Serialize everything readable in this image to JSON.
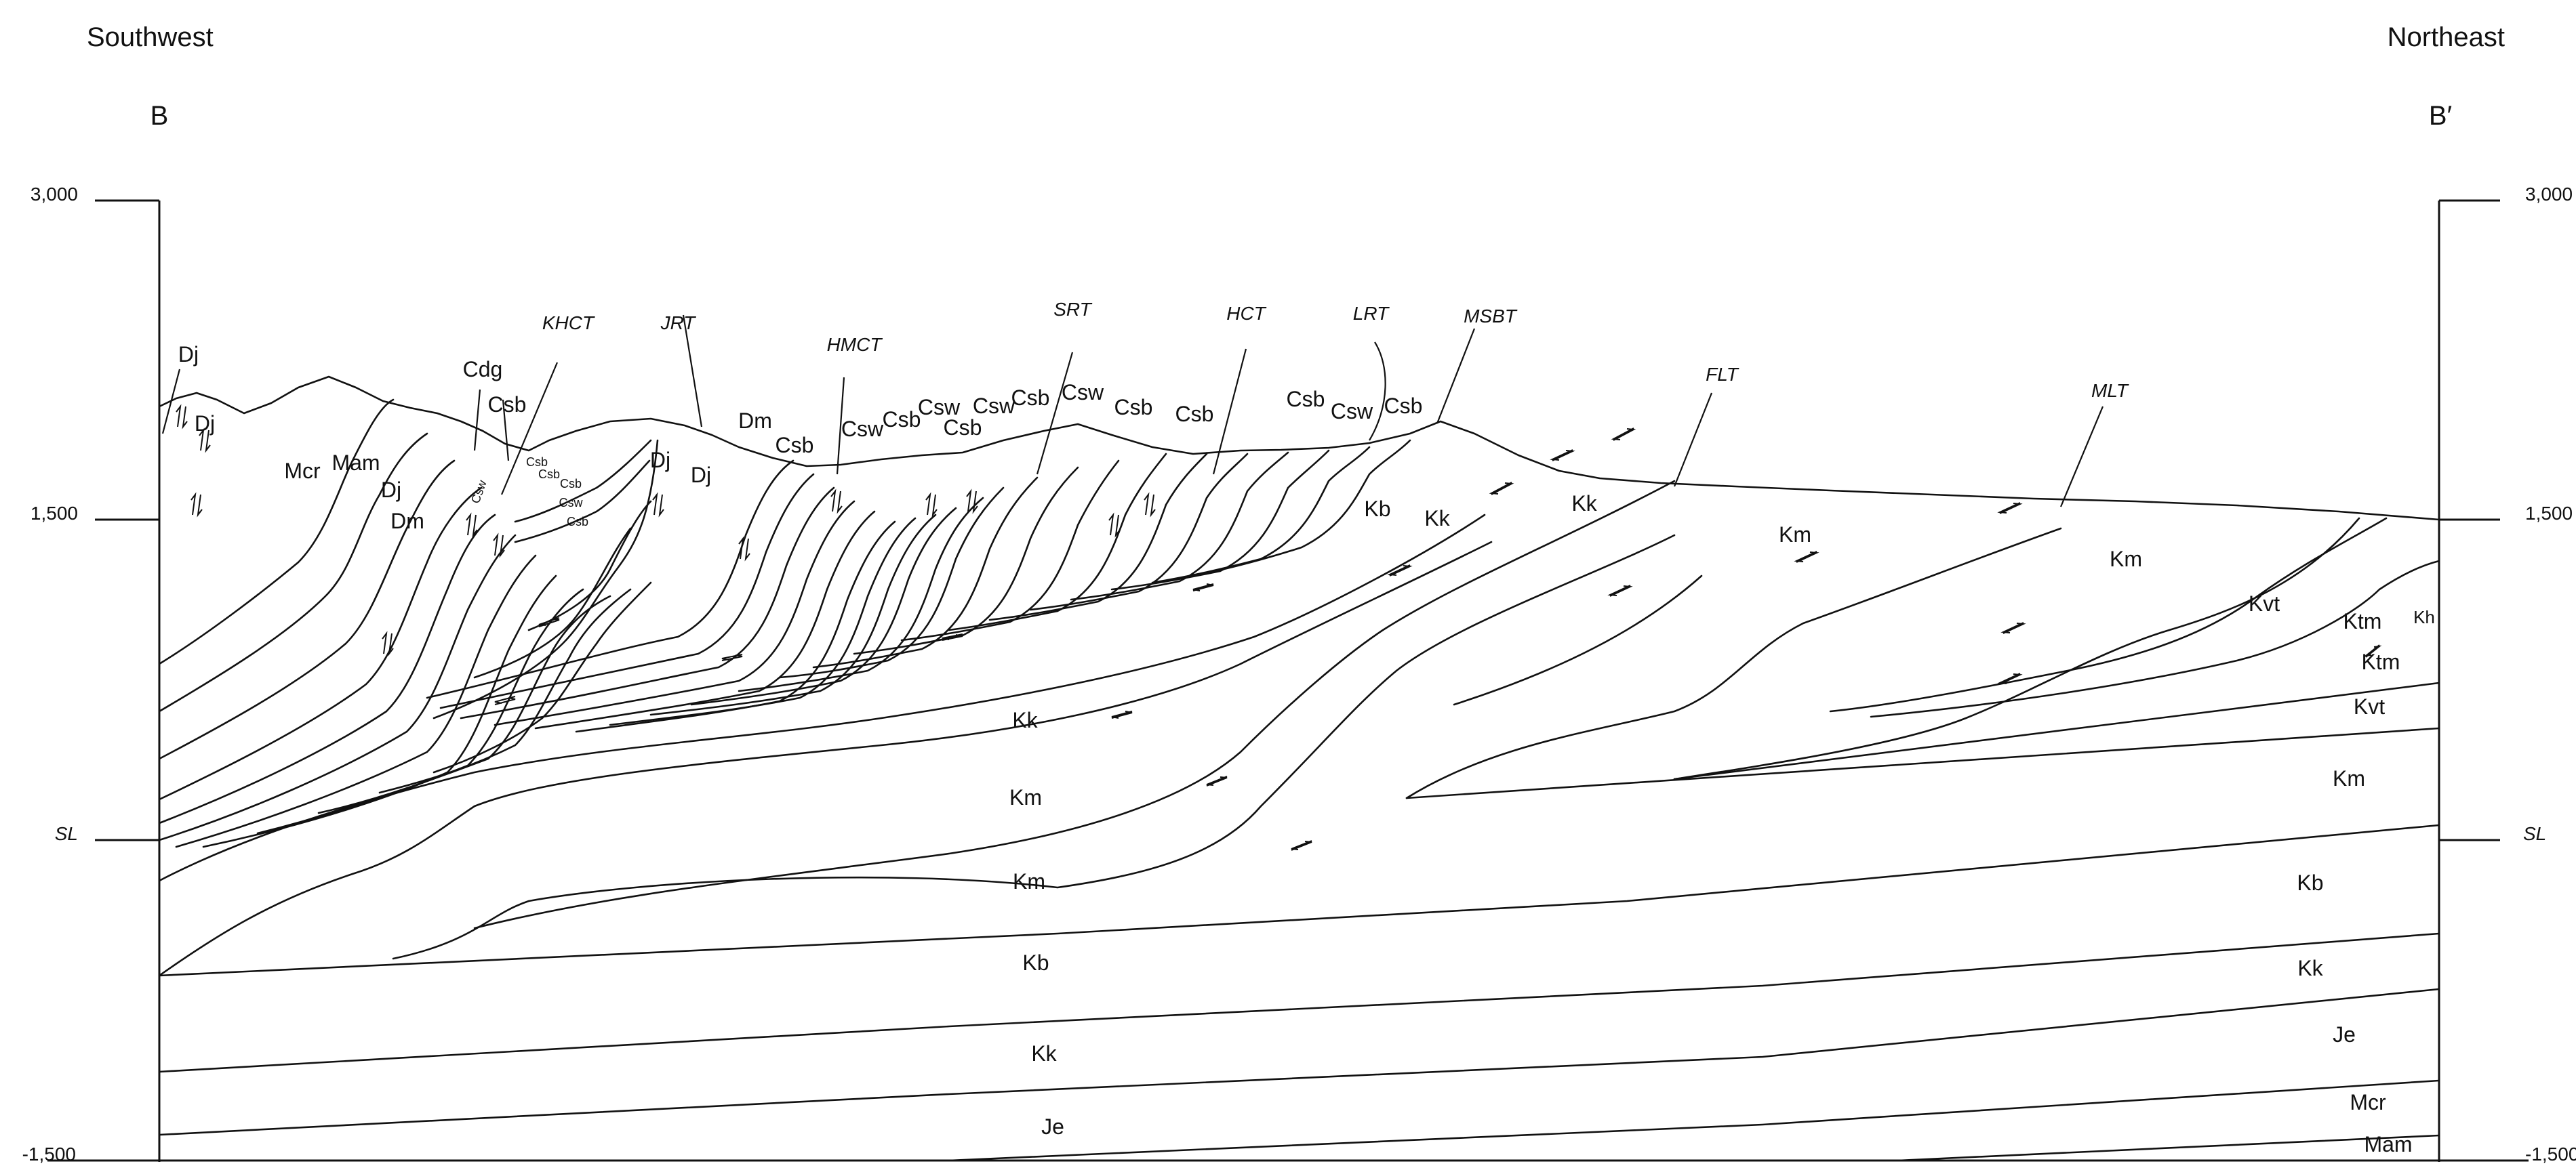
{
  "header": {
    "left_direction": "Southwest",
    "right_direction": "Northeast",
    "left_end": "B",
    "right_end": "B′"
  },
  "axes": {
    "left": {
      "top": "3,000",
      "middle": "1,500",
      "sea_level": "SL",
      "bottom": "-1,500"
    },
    "right": {
      "top": "3,000",
      "middle": "1,500",
      "sea_level": "SL",
      "bottom": "-1,500"
    }
  },
  "faults": {
    "khct": "KHCT",
    "jrt": "JRT",
    "hmct": "HMCT",
    "srt": "SRT",
    "hct": "HCT",
    "lrt": "LRT",
    "msbt": "MSBT",
    "flt": "FLT",
    "mlt": "MLT"
  },
  "units": {
    "dj_top": "Dj",
    "dj_a": "Dj",
    "mcr": "Mcr",
    "mam": "Mam",
    "dj_b": "Dj",
    "dm_a": "Dm",
    "cdg": "Cdg",
    "csb_1": "Csb",
    "csw_small_1": "Csw",
    "csb_small_1": "Csb",
    "csb_small_2": "Csb",
    "csb_small_3": "Csb",
    "csw_small_2": "Csw",
    "csb_small_4": "Csb",
    "dj_c": "Dj",
    "dj_d": "Dj",
    "dm_b": "Dm",
    "csb_2": "Csb",
    "csw_1": "Csw",
    "csb_3": "Csb",
    "csw_2": "Csw",
    "csb_4": "Csb",
    "csw_3": "Csw",
    "csb_5": "Csb",
    "csw_4": "Csw",
    "csb_6": "Csb",
    "csb_7": "Csb",
    "csb_8": "Csb",
    "csw_5": "Csw",
    "csb_9": "Csb",
    "kb_upper": "Kb",
    "kk_upper_a": "Kk",
    "kk_upper_b": "Kk",
    "km_upper_a": "Km",
    "km_upper_b": "Km",
    "kvt_upper": "Kvt",
    "ktm_a": "Ktm",
    "kh": "Kh",
    "ktm_b": "Ktm",
    "kvt_right": "Kvt",
    "km_right": "Km",
    "kk_mid": "Kk",
    "km_mid": "Km",
    "km_lower": "Km",
    "kb_lower": "Kb",
    "kk_lower": "Kk",
    "je_lower": "Je",
    "kb_right": "Kb",
    "kk_right": "Kk",
    "je_right": "Je",
    "mcr_right": "Mcr",
    "mam_right": "Mam"
  }
}
